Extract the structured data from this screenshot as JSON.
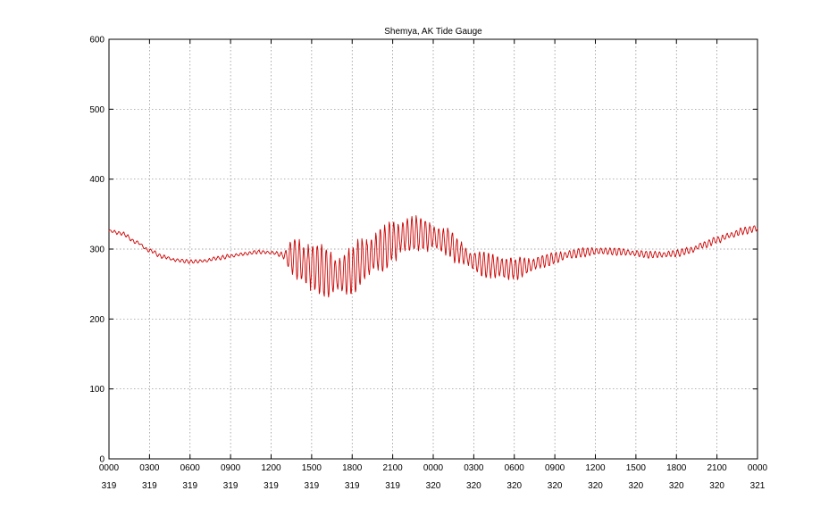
{
  "chart_data": {
    "type": "line",
    "title": "Shemya, AK Tide Gauge",
    "xlabel": "",
    "ylabel": "",
    "ylim": [
      0,
      600
    ],
    "xlim": [
      0,
      48
    ],
    "grid": true,
    "yticks": [
      0,
      100,
      200,
      300,
      400,
      500,
      600
    ],
    "xticks": [
      {
        "x": 0,
        "time": "0000",
        "day": "319"
      },
      {
        "x": 3,
        "time": "0300",
        "day": "319"
      },
      {
        "x": 6,
        "time": "0600",
        "day": "319"
      },
      {
        "x": 9,
        "time": "0900",
        "day": "319"
      },
      {
        "x": 12,
        "time": "1200",
        "day": "319"
      },
      {
        "x": 15,
        "time": "1500",
        "day": "319"
      },
      {
        "x": 18,
        "time": "1800",
        "day": "319"
      },
      {
        "x": 21,
        "time": "2100",
        "day": "319"
      },
      {
        "x": 24,
        "time": "0000",
        "day": "320"
      },
      {
        "x": 27,
        "time": "0300",
        "day": "320"
      },
      {
        "x": 30,
        "time": "0600",
        "day": "320"
      },
      {
        "x": 33,
        "time": "0900",
        "day": "320"
      },
      {
        "x": 36,
        "time": "1200",
        "day": "320"
      },
      {
        "x": 39,
        "time": "1500",
        "day": "320"
      },
      {
        "x": 42,
        "time": "1800",
        "day": "320"
      },
      {
        "x": 45,
        "time": "2100",
        "day": "320"
      },
      {
        "x": 48,
        "time": "0000",
        "day": "321"
      }
    ],
    "series": [
      {
        "color": "#cc0000",
        "x": [
          0,
          1,
          2,
          3,
          4,
          5,
          6,
          7,
          8,
          9,
          10,
          11,
          12,
          13,
          13.5,
          14,
          15,
          16,
          17,
          18,
          19,
          20,
          21,
          22,
          23,
          24,
          25,
          26,
          27,
          28,
          29,
          30,
          31,
          32,
          33,
          34,
          35,
          36,
          37,
          38,
          39,
          40,
          41,
          42,
          43,
          44,
          45,
          46,
          47,
          48
        ],
        "values": [
          326,
          322,
          310,
          298,
          289,
          284,
          282,
          283,
          287,
          290,
          293,
          296,
          295,
          291,
          289,
          284,
          276,
          266,
          262,
          270,
          285,
          297,
          310,
          320,
          322,
          318,
          310,
          295,
          283,
          277,
          274,
          272,
          276,
          282,
          287,
          292,
          295,
          297,
          297,
          296,
          294,
          292,
          292,
          294,
          298,
          306,
          313,
          320,
          326,
          330
        ],
        "amplitude": [
          2,
          2,
          2,
          2,
          2,
          2,
          2,
          2,
          2,
          2,
          2,
          2,
          2,
          4,
          20,
          28,
          30,
          28,
          25,
          28,
          30,
          26,
          24,
          22,
          20,
          18,
          16,
          14,
          12,
          14,
          15,
          12,
          10,
          8,
          7,
          6,
          5,
          5,
          4,
          4,
          4,
          4,
          4,
          4,
          4,
          4,
          4,
          4,
          4,
          4
        ]
      }
    ]
  }
}
